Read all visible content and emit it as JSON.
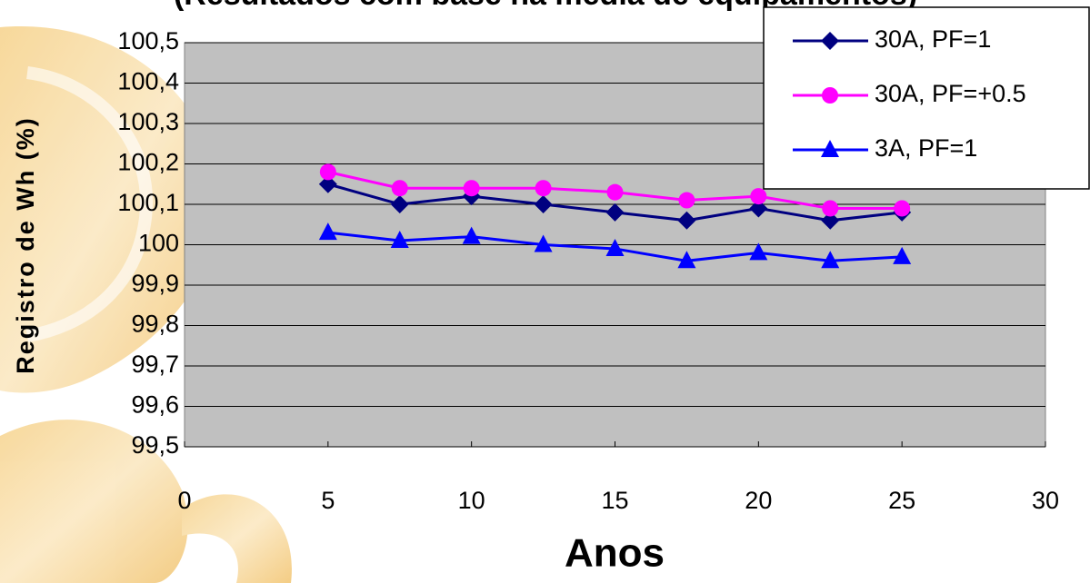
{
  "chart_data": {
    "type": "line",
    "title": "(Resultados com base na média de equipamentos)",
    "y_label": "Registro de Wh (%)",
    "x_label": "Anos",
    "x": [
      5,
      7.5,
      10,
      12.5,
      15,
      17.5,
      20,
      22.5,
      25
    ],
    "series": [
      {
        "name": "30A, PF=1",
        "color": "#000080",
        "marker": "diamond",
        "values": [
          100.15,
          100.1,
          100.12,
          100.1,
          100.08,
          100.06,
          100.09,
          100.06,
          100.08
        ]
      },
      {
        "name": "30A, PF=+0.5",
        "color": "#ff00ff",
        "marker": "circle",
        "values": [
          100.18,
          100.14,
          100.14,
          100.14,
          100.13,
          100.11,
          100.12,
          100.09,
          100.09
        ]
      },
      {
        "name": "3A, PF=1",
        "color": "#0000ff",
        "marker": "triangle",
        "values": [
          100.03,
          100.01,
          100.02,
          100.0,
          99.99,
          99.96,
          99.98,
          99.96,
          99.97
        ]
      }
    ],
    "xlim": [
      0,
      30
    ],
    "xticks": [
      0,
      5,
      10,
      15,
      20,
      25,
      30
    ],
    "ylim": [
      99.5,
      100.5
    ],
    "yticks": [
      {
        "value": 99.5,
        "label": "99,5"
      },
      {
        "value": 99.6,
        "label": "99,6"
      },
      {
        "value": 99.7,
        "label": "99,7"
      },
      {
        "value": 99.8,
        "label": "99,8"
      },
      {
        "value": 99.9,
        "label": "99,9"
      },
      100,
      {
        "value": 100.1,
        "label": "100,1"
      },
      {
        "value": 100.2,
        "label": "100,2"
      },
      {
        "value": 100.3,
        "label": "100,3"
      },
      {
        "value": 100.4,
        "label": "100,4"
      },
      {
        "value": 100.5,
        "label": "100,5"
      }
    ],
    "grid": true,
    "legend": "top-right"
  }
}
